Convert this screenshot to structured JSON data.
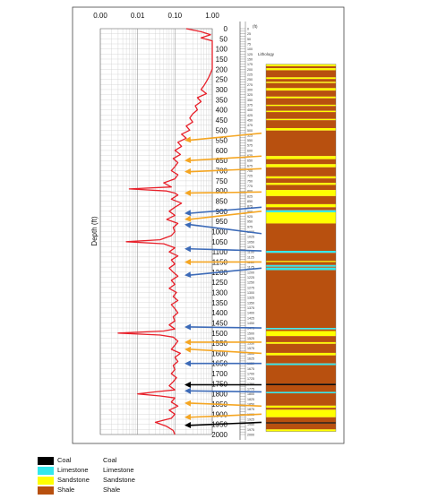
{
  "chart_data": {
    "type": "line",
    "title": "",
    "ylabel": "Depth (ft)",
    "x_scale": "log",
    "x_ticks": [
      "0.00",
      "0.01",
      "0.10",
      "1.00"
    ],
    "xlim": [
      0.001,
      1.0
    ],
    "ylim": [
      0,
      2000
    ],
    "y_ticks": [
      "0",
      "50",
      "100",
      "150",
      "200",
      "250",
      "300",
      "350",
      "400",
      "450",
      "500",
      "550",
      "600",
      "650",
      "700",
      "750",
      "800",
      "850",
      "900",
      "950",
      "1000",
      "1050",
      "1100",
      "1150",
      "1200",
      "1250",
      "1300",
      "1350",
      "1400",
      "1450",
      "1500",
      "1550",
      "1600",
      "1650",
      "1700",
      "1750",
      "1800",
      "1850",
      "1900",
      "1950",
      "2000"
    ],
    "grid": true,
    "series": [
      {
        "name": "log curve",
        "color": "#e8202a",
        "depth": [
          0,
          15,
          30,
          45,
          60,
          80,
          100,
          120,
          140,
          160,
          180,
          200,
          220,
          240,
          260,
          280,
          300,
          320,
          340,
          360,
          380,
          400,
          420,
          440,
          460,
          480,
          500,
          520,
          540,
          560,
          580,
          600,
          620,
          640,
          660,
          680,
          700,
          720,
          740,
          760,
          780,
          790,
          800,
          810,
          820,
          840,
          860,
          880,
          900,
          920,
          940,
          960,
          980,
          1000,
          1020,
          1040,
          1050,
          1060,
          1080,
          1100,
          1120,
          1140,
          1160,
          1180,
          1200,
          1220,
          1240,
          1260,
          1280,
          1300,
          1320,
          1340,
          1360,
          1380,
          1400,
          1420,
          1440,
          1460,
          1480,
          1490,
          1500,
          1510,
          1520,
          1540,
          1560,
          1580,
          1600,
          1620,
          1640,
          1660,
          1680,
          1700,
          1720,
          1740,
          1760,
          1780,
          1790,
          1800,
          1810,
          1820,
          1840,
          1860,
          1880,
          1900,
          1920,
          1940,
          1960,
          1980,
          2000
        ],
        "values": [
          0.2,
          0.5,
          0.9,
          0.5,
          1.0,
          1.0,
          1.0,
          1.0,
          1.0,
          1.0,
          1.0,
          1.0,
          0.9,
          0.8,
          0.7,
          0.6,
          0.5,
          0.7,
          0.4,
          0.5,
          0.35,
          0.4,
          0.3,
          0.25,
          0.3,
          0.2,
          0.25,
          0.15,
          0.2,
          0.12,
          0.15,
          0.1,
          0.14,
          0.09,
          0.12,
          0.1,
          0.08,
          0.12,
          0.1,
          0.05,
          0.08,
          0.006,
          0.06,
          0.1,
          0.12,
          0.08,
          0.15,
          0.1,
          0.07,
          0.1,
          0.06,
          0.12,
          0.09,
          0.1,
          0.08,
          0.04,
          0.005,
          0.05,
          0.1,
          0.07,
          0.12,
          0.08,
          0.1,
          0.07,
          0.09,
          0.12,
          0.08,
          0.1,
          0.07,
          0.11,
          0.09,
          0.12,
          0.08,
          0.1,
          0.12,
          0.09,
          0.1,
          0.07,
          0.1,
          0.05,
          0.003,
          0.04,
          0.09,
          0.12,
          0.1,
          0.08,
          0.14,
          0.1,
          0.12,
          0.09,
          0.1,
          0.08,
          0.11,
          0.09,
          0.07,
          0.1,
          0.03,
          0.01,
          0.04,
          0.1,
          0.08,
          0.12,
          0.07,
          0.1,
          0.08,
          0.03,
          0.06,
          0.09,
          0.1
        ]
      }
    ],
    "lithology": {
      "header": "Lithology",
      "depth_unit_label": "(ft)",
      "colors": {
        "Coal": "#000000",
        "Limestone": "#33e8ec",
        "Sandstone": "#ffff00",
        "Shale": "#b8500f"
      },
      "intervals": [
        {
          "top": 175,
          "base": 185,
          "type": "Sandstone"
        },
        {
          "top": 185,
          "base": 195,
          "type": "Shale"
        },
        {
          "top": 195,
          "base": 205,
          "type": "Sandstone"
        },
        {
          "top": 205,
          "base": 240,
          "type": "Shale"
        },
        {
          "top": 240,
          "base": 248,
          "type": "Sandstone"
        },
        {
          "top": 248,
          "base": 262,
          "type": "Shale"
        },
        {
          "top": 262,
          "base": 268,
          "type": "Sandstone"
        },
        {
          "top": 268,
          "base": 293,
          "type": "Shale"
        },
        {
          "top": 293,
          "base": 305,
          "type": "Sandstone"
        },
        {
          "top": 305,
          "base": 335,
          "type": "Shale"
        },
        {
          "top": 335,
          "base": 343,
          "type": "Sandstone"
        },
        {
          "top": 343,
          "base": 375,
          "type": "Shale"
        },
        {
          "top": 375,
          "base": 381,
          "type": "Sandstone"
        },
        {
          "top": 381,
          "base": 405,
          "type": "Shale"
        },
        {
          "top": 405,
          "base": 411,
          "type": "Sandstone"
        },
        {
          "top": 411,
          "base": 445,
          "type": "Shale"
        },
        {
          "top": 445,
          "base": 451,
          "type": "Sandstone"
        },
        {
          "top": 451,
          "base": 490,
          "type": "Shale"
        },
        {
          "top": 490,
          "base": 502,
          "type": "Sandstone"
        },
        {
          "top": 502,
          "base": 628,
          "type": "Shale"
        },
        {
          "top": 628,
          "base": 643,
          "type": "Sandstone"
        },
        {
          "top": 643,
          "base": 668,
          "type": "Shale"
        },
        {
          "top": 668,
          "base": 683,
          "type": "Sandstone"
        },
        {
          "top": 683,
          "base": 728,
          "type": "Shale"
        },
        {
          "top": 728,
          "base": 738,
          "type": "Sandstone"
        },
        {
          "top": 738,
          "base": 760,
          "type": "Shale"
        },
        {
          "top": 760,
          "base": 770,
          "type": "Sandstone"
        },
        {
          "top": 770,
          "base": 795,
          "type": "Shale"
        },
        {
          "top": 795,
          "base": 825,
          "type": "Sandstone"
        },
        {
          "top": 825,
          "base": 865,
          "type": "Shale"
        },
        {
          "top": 865,
          "base": 880,
          "type": "Sandstone"
        },
        {
          "top": 880,
          "base": 895,
          "type": "Shale"
        },
        {
          "top": 895,
          "base": 905,
          "type": "Limestone"
        },
        {
          "top": 905,
          "base": 960,
          "type": "Sandstone"
        },
        {
          "top": 960,
          "base": 1095,
          "type": "Shale"
        },
        {
          "top": 1095,
          "base": 1105,
          "type": "Limestone"
        },
        {
          "top": 1105,
          "base": 1145,
          "type": "Shale"
        },
        {
          "top": 1145,
          "base": 1150,
          "type": "Sandstone"
        },
        {
          "top": 1150,
          "base": 1165,
          "type": "Shale"
        },
        {
          "top": 1165,
          "base": 1173,
          "type": "Limestone"
        },
        {
          "top": 1173,
          "base": 1178,
          "type": "Shale"
        },
        {
          "top": 1178,
          "base": 1190,
          "type": "Limestone"
        },
        {
          "top": 1190,
          "base": 1475,
          "type": "Shale"
        },
        {
          "top": 1475,
          "base": 1482,
          "type": "Limestone"
        },
        {
          "top": 1482,
          "base": 1490,
          "type": "Shale"
        },
        {
          "top": 1490,
          "base": 1515,
          "type": "Sandstone"
        },
        {
          "top": 1515,
          "base": 1545,
          "type": "Shale"
        },
        {
          "top": 1545,
          "base": 1553,
          "type": "Sandstone"
        },
        {
          "top": 1553,
          "base": 1598,
          "type": "Shale"
        },
        {
          "top": 1598,
          "base": 1610,
          "type": "Sandstone"
        },
        {
          "top": 1610,
          "base": 1650,
          "type": "Shale"
        },
        {
          "top": 1650,
          "base": 1658,
          "type": "Limestone"
        },
        {
          "top": 1658,
          "base": 1750,
          "type": "Shale"
        },
        {
          "top": 1750,
          "base": 1757,
          "type": "Coal"
        },
        {
          "top": 1757,
          "base": 1790,
          "type": "Shale"
        },
        {
          "top": 1790,
          "base": 1797,
          "type": "Limestone"
        },
        {
          "top": 1797,
          "base": 1858,
          "type": "Shale"
        },
        {
          "top": 1858,
          "base": 1868,
          "type": "Sandstone"
        },
        {
          "top": 1868,
          "base": 1878,
          "type": "Shale"
        },
        {
          "top": 1878,
          "base": 1915,
          "type": "Sandstone"
        },
        {
          "top": 1915,
          "base": 1940,
          "type": "Shale"
        },
        {
          "top": 1940,
          "base": 1946,
          "type": "Coal"
        },
        {
          "top": 1946,
          "base": 1975,
          "type": "Shale"
        },
        {
          "top": 1975,
          "base": 1985,
          "type": "Sandstone"
        }
      ]
    },
    "arrows": [
      {
        "from": 515,
        "to": 550,
        "color": "#f5a623"
      },
      {
        "from": 628,
        "to": 650,
        "color": "#f5a623"
      },
      {
        "from": 690,
        "to": 705,
        "color": "#f5a623"
      },
      {
        "from": 805,
        "to": 810,
        "color": "#f5a623"
      },
      {
        "from": 880,
        "to": 910,
        "color": "#3d6bb8"
      },
      {
        "from": 900,
        "to": 940,
        "color": "#f5a623"
      },
      {
        "from": 1010,
        "to": 965,
        "color": "#3d6bb8"
      },
      {
        "from": 1095,
        "to": 1085,
        "color": "#3d6bb8"
      },
      {
        "from": 1150,
        "to": 1150,
        "color": "#f5a623"
      },
      {
        "from": 1180,
        "to": 1215,
        "color": "#3d6bb8"
      },
      {
        "from": 1475,
        "to": 1470,
        "color": "#3d6bb8"
      },
      {
        "from": 1545,
        "to": 1545,
        "color": "#f5a623"
      },
      {
        "from": 1600,
        "to": 1580,
        "color": "#f5a623"
      },
      {
        "from": 1650,
        "to": 1650,
        "color": "#3d6bb8"
      },
      {
        "from": 1755,
        "to": 1755,
        "color": "#000000"
      },
      {
        "from": 1790,
        "to": 1785,
        "color": "#3d6bb8"
      },
      {
        "from": 1860,
        "to": 1845,
        "color": "#f5a623"
      },
      {
        "from": 1900,
        "to": 1915,
        "color": "#f5a623"
      },
      {
        "from": 1940,
        "to": 1955,
        "color": "#000000"
      }
    ],
    "legend": [
      {
        "label": "Coal",
        "label2": "Coal",
        "color": "#000000"
      },
      {
        "label": "Limestone",
        "label2": "Limestone",
        "color": "#33e8ec"
      },
      {
        "label": "Sandstone",
        "label2": "Sandstone",
        "color": "#ffff00"
      },
      {
        "label": "Shale",
        "label2": "Shale",
        "color": "#b8500f"
      }
    ],
    "legend_position": "bottom-left"
  }
}
